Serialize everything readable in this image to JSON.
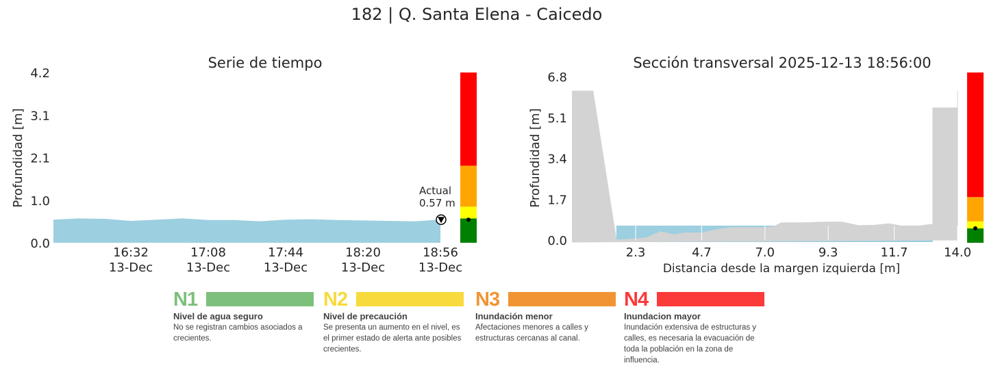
{
  "title": "182 | Q. Santa Elena - Caicedo",
  "colors": {
    "water": "#9ccfe0",
    "ground": "#d3d3d3",
    "n1": "#008000",
    "n2": "#ffff00",
    "n3": "#ffa500",
    "n4": "#ff0000"
  },
  "chart_data": [
    {
      "type": "area",
      "title": "Serie de tiempo",
      "ylabel": "Profundidad [m]",
      "ylim": [
        0,
        4.2
      ],
      "yticks": [
        "0.0",
        "1.0",
        "2.1",
        "3.1",
        "4.2"
      ],
      "xticks": [
        "16:32\n13-Dec",
        "17:08\n13-Dec",
        "17:44\n13-Dec",
        "18:20\n13-Dec",
        "18:56\n13-Dec"
      ],
      "xtick_labels": [
        {
          "time": "16:32",
          "date": "13-Dec"
        },
        {
          "time": "17:08",
          "date": "13-Dec"
        },
        {
          "time": "17:44",
          "date": "13-Dec"
        },
        {
          "time": "18:20",
          "date": "13-Dec"
        },
        {
          "time": "18:56",
          "date": "13-Dec"
        }
      ],
      "x_minutes_range": [
        0,
        180
      ],
      "x_start": "15:56",
      "x": [
        0,
        12,
        24,
        36,
        48,
        60,
        72,
        84,
        96,
        108,
        120,
        132,
        144,
        156,
        168,
        180
      ],
      "values": [
        0.57,
        0.6,
        0.59,
        0.54,
        0.57,
        0.6,
        0.56,
        0.56,
        0.53,
        0.57,
        0.58,
        0.56,
        0.55,
        0.54,
        0.53,
        0.57
      ],
      "annotation": {
        "label": "Actual",
        "value": "0.57 m"
      },
      "thresholds": [
        0.6,
        0.89,
        1.9,
        4.2
      ]
    },
    {
      "type": "area",
      "title": "Sección transversal 2025-12-13 18:56:00",
      "xlabel": "Distancia desde la margen izquierda [m]",
      "ylabel": "Profundidad [m]",
      "ylim": [
        0,
        6.8
      ],
      "xlim": [
        0,
        14.0
      ],
      "yticks": [
        "0.0",
        "1.7",
        "3.4",
        "5.1",
        "6.8"
      ],
      "xticks": [
        "2.3",
        "4.7",
        "7.0",
        "9.3",
        "11.7",
        "14.0"
      ],
      "water_level": 0.6,
      "profile_x": [
        0,
        0.75,
        1.6,
        2.3,
        2.7,
        3.2,
        3.7,
        4.1,
        4.7,
        5.3,
        5.8,
        7.0,
        7.3,
        7.6,
        8.3,
        9.3,
        9.8,
        10.4,
        11.0,
        11.5,
        12.0,
        12.6,
        13.0,
        13.1,
        13.1,
        14.0,
        14.0,
        14.0
      ],
      "profile_y": [
        6.2,
        6.2,
        0.0,
        0.05,
        0.1,
        0.35,
        0.22,
        0.3,
        0.3,
        0.45,
        0.52,
        0.52,
        0.55,
        0.72,
        0.72,
        0.75,
        0.75,
        0.6,
        0.62,
        0.68,
        0.58,
        0.58,
        0.65,
        0.65,
        5.5,
        5.5,
        6.2,
        0
      ],
      "thresholds": [
        0.6,
        0.89,
        1.9,
        6.8
      ]
    }
  ],
  "legend": [
    {
      "code": "N1",
      "title": "Nivel de agua seguro",
      "desc": "No se registran cambios asociados a crecientes.",
      "color": "#7dc07b"
    },
    {
      "code": "N2",
      "title": "Nivel de precaución",
      "desc": "Se presenta un aumento en el nivel, es el primer estado de alerta ante posibles crecientes.",
      "color": "#f8da3c"
    },
    {
      "code": "N3",
      "title": "Inundación menor",
      "desc": "Afectaciones menores a calles y estructuras cercanas al canal.",
      "color": "#f19433"
    },
    {
      "code": "N4",
      "title": "Inundacion mayor",
      "desc": "Inundación extensiva de estructuras y calles, es necesaria la evacuación de toda la población en la zona de influencia.",
      "color": "#fb3a3a"
    }
  ]
}
